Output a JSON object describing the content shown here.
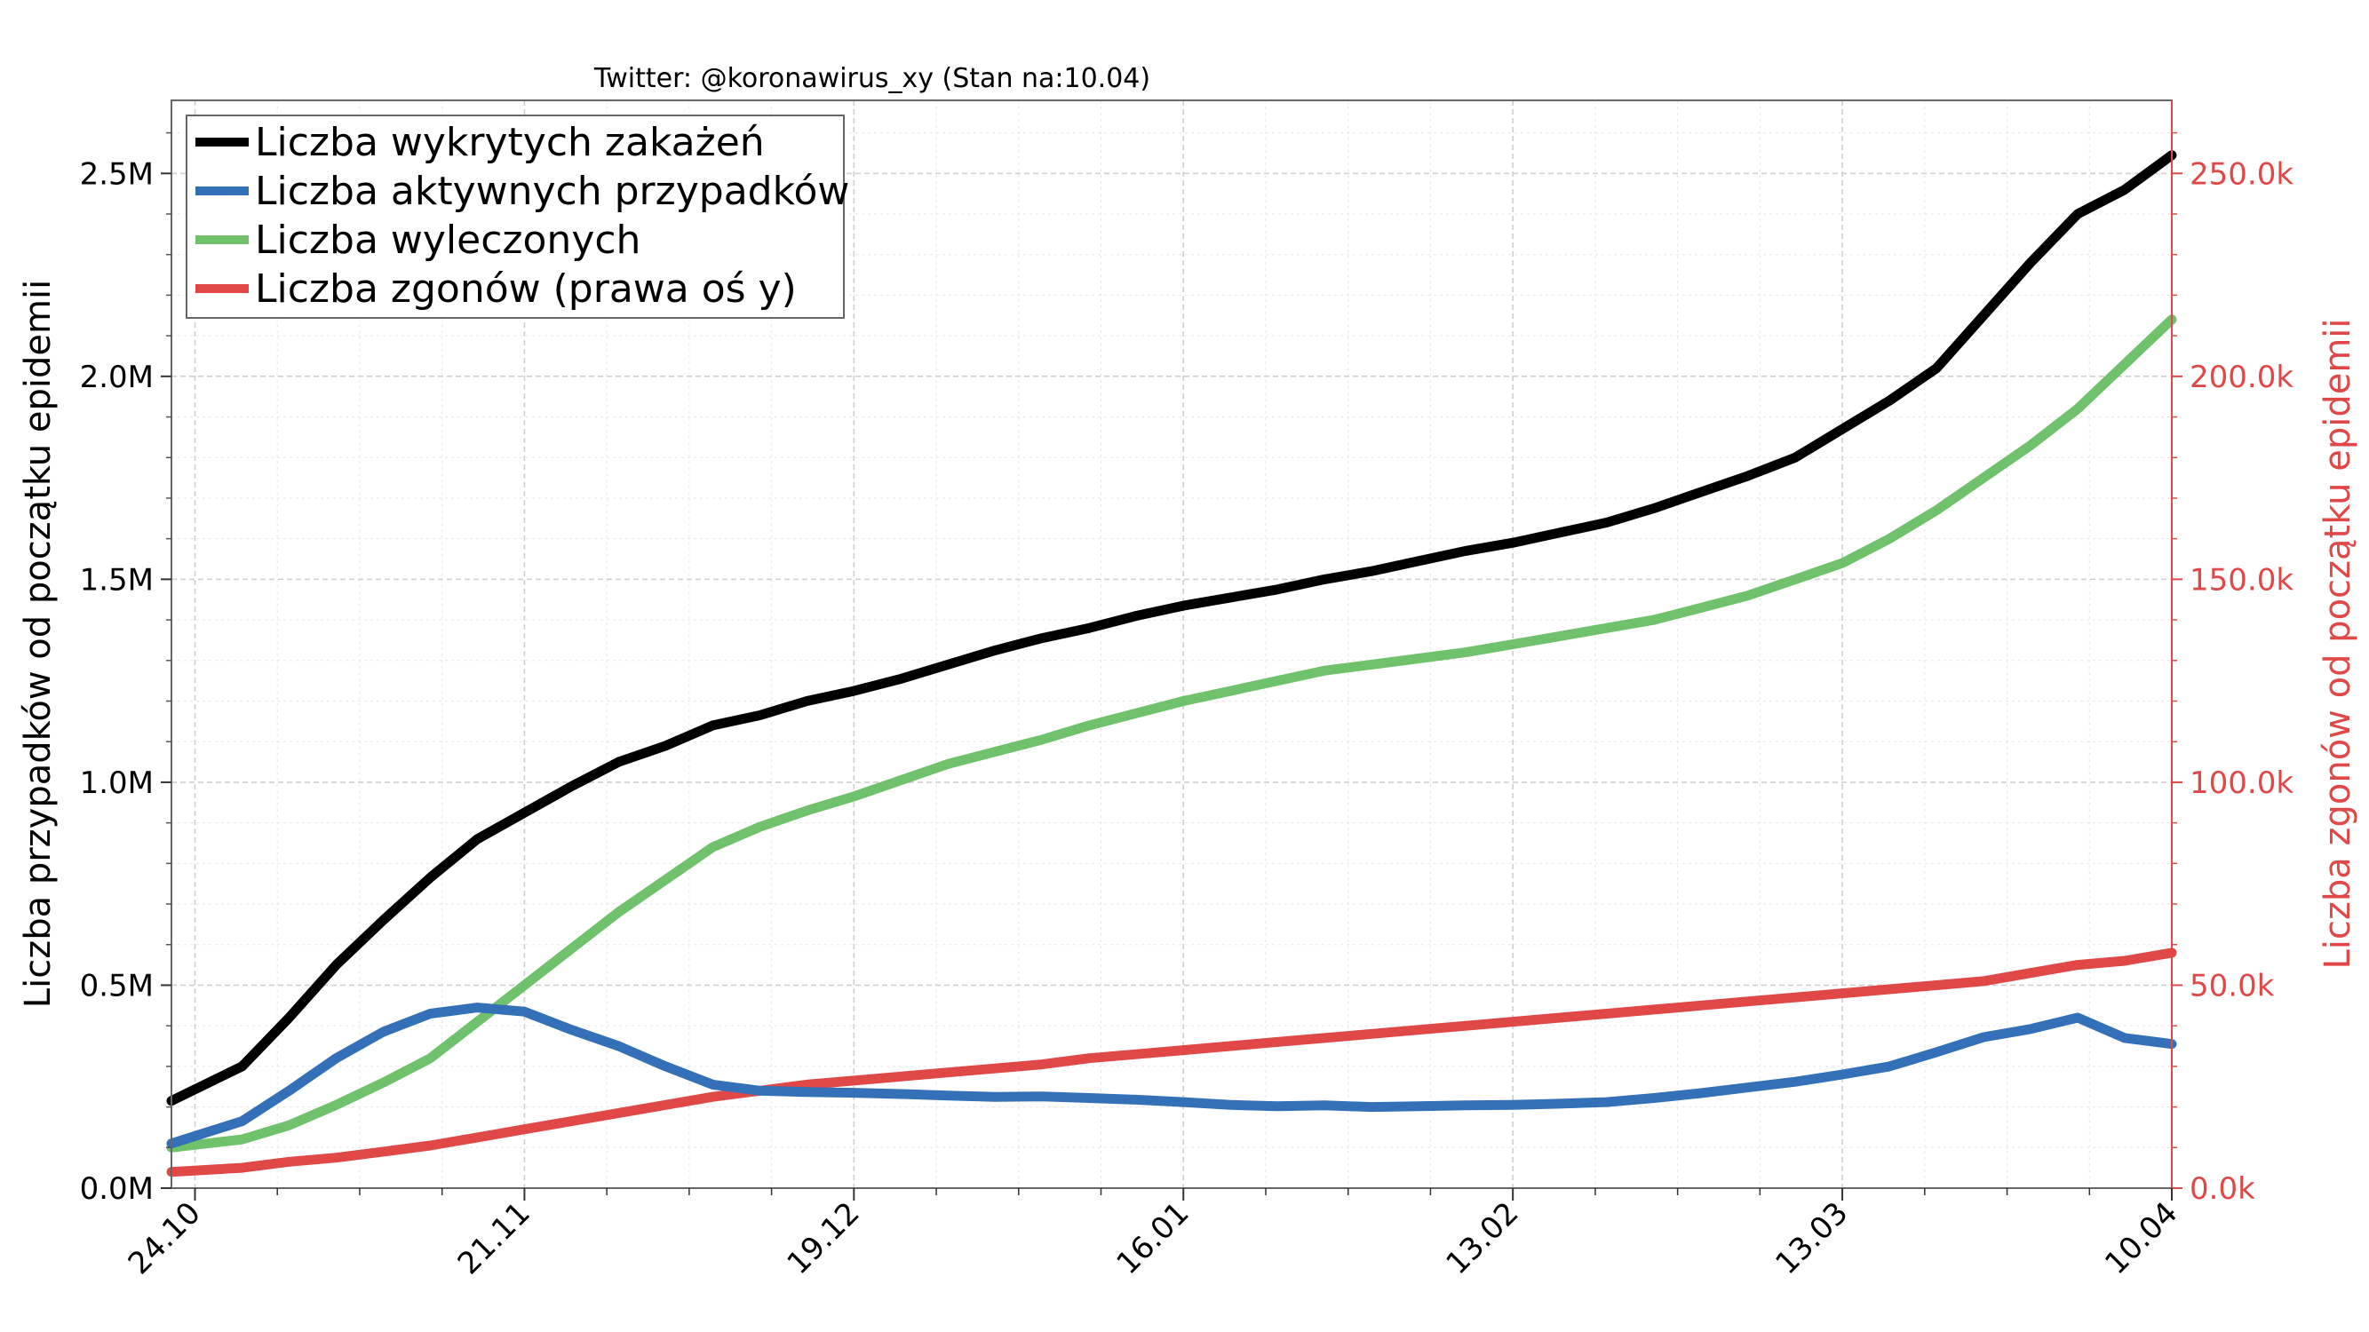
{
  "chart_data": {
    "type": "line",
    "title": "Twitter: @koronawirus_xy (Stan na:10.04)",
    "x_tick_labels": [
      "24.10",
      "21.11",
      "19.12",
      "16.01",
      "13.02",
      "13.03",
      "10.04"
    ],
    "x_tick_day_index": [
      0,
      28,
      56,
      84,
      112,
      140,
      168
    ],
    "x_range_days": [
      -2,
      168
    ],
    "ylabel_left": "Liczba przypadków od początku epidemii",
    "ylabel_right": "Liczba zgonów od początku epidemii",
    "y_left_ticks": [
      "0.0M",
      "0.5M",
      "1.0M",
      "1.5M",
      "2.0M",
      "2.5M"
    ],
    "y_left_tick_values": [
      0,
      500000,
      1000000,
      1500000,
      2000000,
      2500000
    ],
    "y_left_range": [
      0,
      2680000
    ],
    "y_right_ticks": [
      "0.0k",
      "50.0k",
      "100.0k",
      "150.0k",
      "200.0k",
      "250.0k"
    ],
    "y_right_tick_values": [
      0,
      50000,
      100000,
      150000,
      200000,
      250000
    ],
    "y_right_range": [
      0,
      268000
    ],
    "grid": true,
    "legend_position": "top-left",
    "series": [
      {
        "name": "Liczba wykrytych zakażeń",
        "color": "#000000",
        "axis": "left",
        "x": [
          -2,
          4,
          8,
          12,
          16,
          20,
          24,
          28,
          32,
          36,
          40,
          44,
          48,
          52,
          56,
          60,
          64,
          68,
          72,
          76,
          80,
          84,
          88,
          92,
          96,
          100,
          104,
          108,
          112,
          116,
          120,
          124,
          128,
          132,
          136,
          140,
          144,
          148,
          152,
          156,
          160,
          164,
          168
        ],
        "y": [
          215000,
          300000,
          420000,
          550000,
          660000,
          765000,
          860000,
          925000,
          990000,
          1050000,
          1090000,
          1140000,
          1165000,
          1200000,
          1225000,
          1255000,
          1290000,
          1325000,
          1355000,
          1380000,
          1410000,
          1435000,
          1455000,
          1475000,
          1500000,
          1520000,
          1545000,
          1570000,
          1590000,
          1615000,
          1640000,
          1675000,
          1715000,
          1755000,
          1800000,
          1870000,
          1940000,
          2020000,
          2150000,
          2280000,
          2400000,
          2460000,
          2545000
        ]
      },
      {
        "name": "Liczba aktywnych przypadków",
        "color": "#3370b8",
        "axis": "left",
        "x": [
          -2,
          4,
          8,
          12,
          16,
          20,
          24,
          28,
          32,
          36,
          40,
          44,
          48,
          52,
          56,
          60,
          64,
          68,
          72,
          76,
          80,
          84,
          88,
          92,
          96,
          100,
          104,
          108,
          112,
          116,
          120,
          124,
          128,
          132,
          136,
          140,
          144,
          148,
          152,
          156,
          160,
          164,
          168
        ],
        "y": [
          110000,
          165000,
          240000,
          320000,
          385000,
          430000,
          445000,
          435000,
          390000,
          350000,
          300000,
          255000,
          240000,
          237000,
          235000,
          232000,
          228000,
          225000,
          226000,
          222000,
          218000,
          212000,
          205000,
          202000,
          204000,
          200000,
          202000,
          204000,
          205000,
          208000,
          212000,
          222000,
          234000,
          248000,
          262000,
          280000,
          300000,
          335000,
          372000,
          392000,
          420000,
          370000,
          355000
        ]
      },
      {
        "name": "Liczba wyleczonych",
        "color": "#6fc26b",
        "axis": "left",
        "x": [
          -2,
          4,
          8,
          12,
          16,
          20,
          24,
          28,
          32,
          36,
          40,
          44,
          48,
          52,
          56,
          60,
          64,
          68,
          72,
          76,
          80,
          84,
          88,
          92,
          96,
          100,
          104,
          108,
          112,
          116,
          120,
          124,
          128,
          132,
          136,
          140,
          144,
          148,
          152,
          156,
          160,
          164,
          168
        ],
        "y": [
          100000,
          120000,
          155000,
          205000,
          260000,
          320000,
          410000,
          500000,
          590000,
          680000,
          760000,
          840000,
          890000,
          930000,
          965000,
          1005000,
          1045000,
          1075000,
          1105000,
          1140000,
          1170000,
          1200000,
          1225000,
          1250000,
          1275000,
          1290000,
          1305000,
          1320000,
          1340000,
          1360000,
          1380000,
          1400000,
          1430000,
          1460000,
          1500000,
          1540000,
          1600000,
          1670000,
          1750000,
          1830000,
          1920000,
          2030000,
          2140000
        ]
      },
      {
        "name": "Liczba zgonów (prawa oś y)",
        "color": "#e04848",
        "axis": "right",
        "x": [
          -2,
          4,
          8,
          12,
          16,
          20,
          24,
          28,
          32,
          36,
          40,
          44,
          48,
          52,
          56,
          60,
          64,
          68,
          72,
          76,
          80,
          84,
          88,
          92,
          96,
          100,
          104,
          108,
          112,
          116,
          120,
          124,
          128,
          132,
          136,
          140,
          144,
          148,
          152,
          156,
          160,
          164,
          168
        ],
        "y": [
          4000,
          5000,
          6500,
          7500,
          9000,
          10500,
          12500,
          14500,
          16500,
          18500,
          20500,
          22500,
          24000,
          25500,
          26500,
          27500,
          28500,
          29500,
          30500,
          32000,
          33000,
          34000,
          35000,
          36000,
          37000,
          38000,
          39000,
          40000,
          41000,
          42000,
          43000,
          44000,
          45000,
          46000,
          47000,
          48000,
          49000,
          50000,
          51000,
          53000,
          55000,
          56000,
          58000
        ]
      }
    ]
  }
}
